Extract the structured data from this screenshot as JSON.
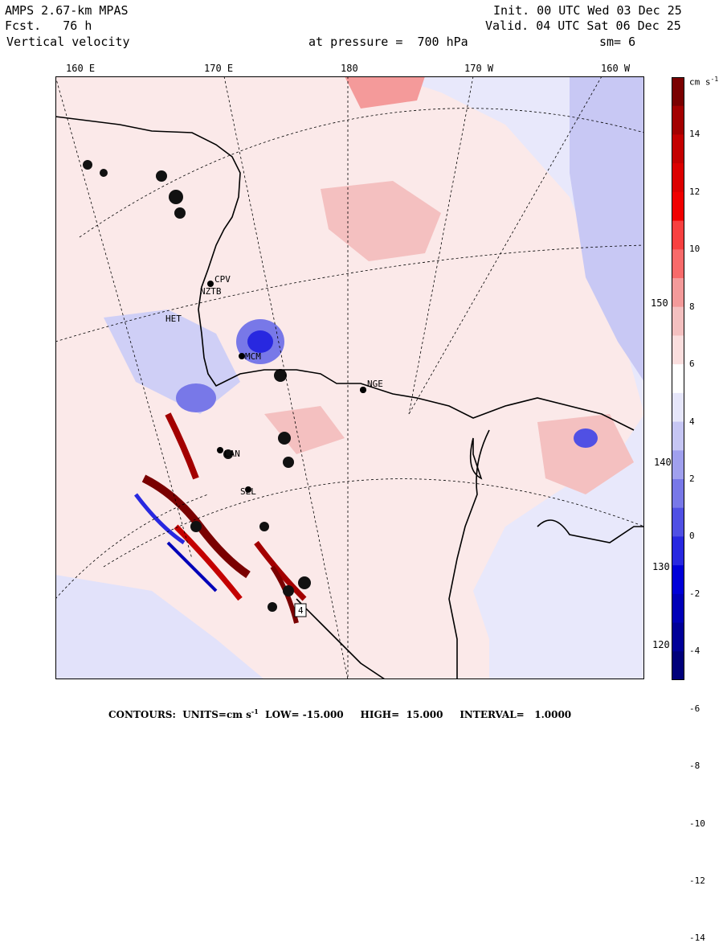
{
  "header": {
    "model": "AMPS 2.67-km MPAS",
    "forecast": "Fcst.   76 h",
    "field": "Vertical velocity",
    "init": "Init. 00 UTC Wed 03 Dec 25",
    "valid": "Valid. 04 UTC Sat 06 Dec 25",
    "level": "at pressure =  700 hPa",
    "smoothing": "sm= 6"
  },
  "longitude_labels": [
    "160 E",
    "170 E",
    "180",
    "170 W",
    "160 W"
  ],
  "latitude_labels": [
    "150 W",
    "140 W",
    "130 W",
    "120 W"
  ],
  "colorbar": {
    "units": "cm s",
    "units_exp": "-1",
    "labels": [
      "14",
      "12",
      "10",
      "8",
      "6",
      "4",
      "2",
      "0",
      "-2",
      "-4",
      "-6",
      "-8",
      "-10",
      "-12",
      "-14"
    ],
    "colors": [
      "#7a0000",
      "#a30000",
      "#c40000",
      "#dc0000",
      "#f00000",
      "#f84040",
      "#f86a6a",
      "#f49a9a",
      "#f4c0c0",
      "#fadede",
      "#ffffff",
      "#e6e6fa",
      "#c6c6f4",
      "#a0a0ee",
      "#7878e8",
      "#5050e4",
      "#2828e0",
      "#0000d8",
      "#0000b8",
      "#000098",
      "#00007a"
    ]
  },
  "stations": [
    "CPV",
    "NZTB",
    "HET",
    "MCM",
    "NGE",
    "LAN",
    "SEL",
    "4"
  ],
  "footer": {
    "contours_label": "CONTOURS:",
    "units": "UNITS=cm s",
    "units_exp": "-1",
    "low": "LOW= -15.000",
    "high": "HIGH=  15.000",
    "interval": "INTERVAL=   1.0000"
  }
}
